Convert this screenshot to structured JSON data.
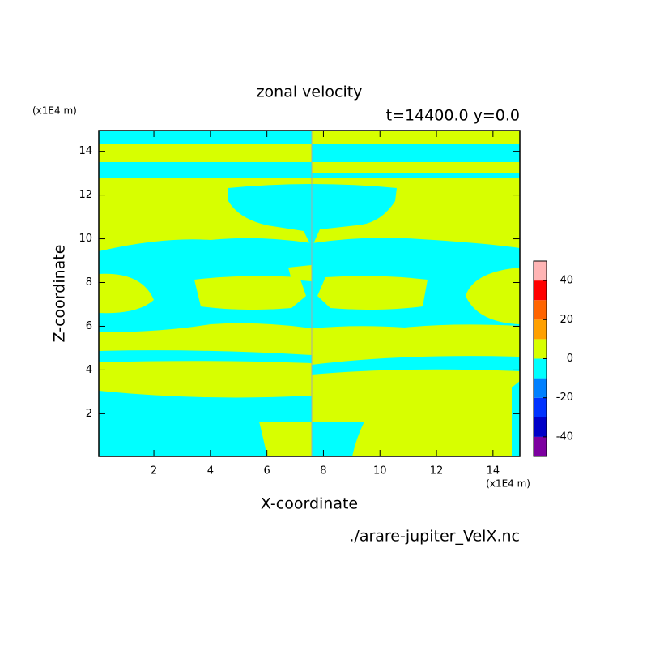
{
  "chart_data": {
    "type": "contour",
    "title": "zonal velocity",
    "subtitle": "t=14400.0 y=0.0",
    "x_label": "X-coordinate",
    "y_label": "Z-coordinate",
    "x_unit": "(x1E4 m)",
    "y_unit": "(x1E4 m)",
    "source": "./arare-jupiter_VelX.nc",
    "xlim": [
      0.05,
      14.95
    ],
    "ylim": [
      0.05,
      14.95
    ],
    "xticks": [
      2,
      4,
      6,
      8,
      10,
      12,
      14
    ],
    "yticks": [
      2,
      4,
      6,
      8,
      10,
      12,
      14
    ],
    "levels": [
      -50,
      -40,
      -30,
      -20,
      -10,
      0,
      10,
      20,
      30,
      40,
      50
    ],
    "level_colors": [
      "#7d00a0",
      "#0000c8",
      "#0032ff",
      "#0080ff",
      "#00ffff",
      "#d7ff00",
      "#ffa000",
      "#ff6400",
      "#ff0000",
      "#ffb4b4"
    ],
    "cticks": [
      -40,
      -20,
      0,
      20,
      40
    ]
  }
}
